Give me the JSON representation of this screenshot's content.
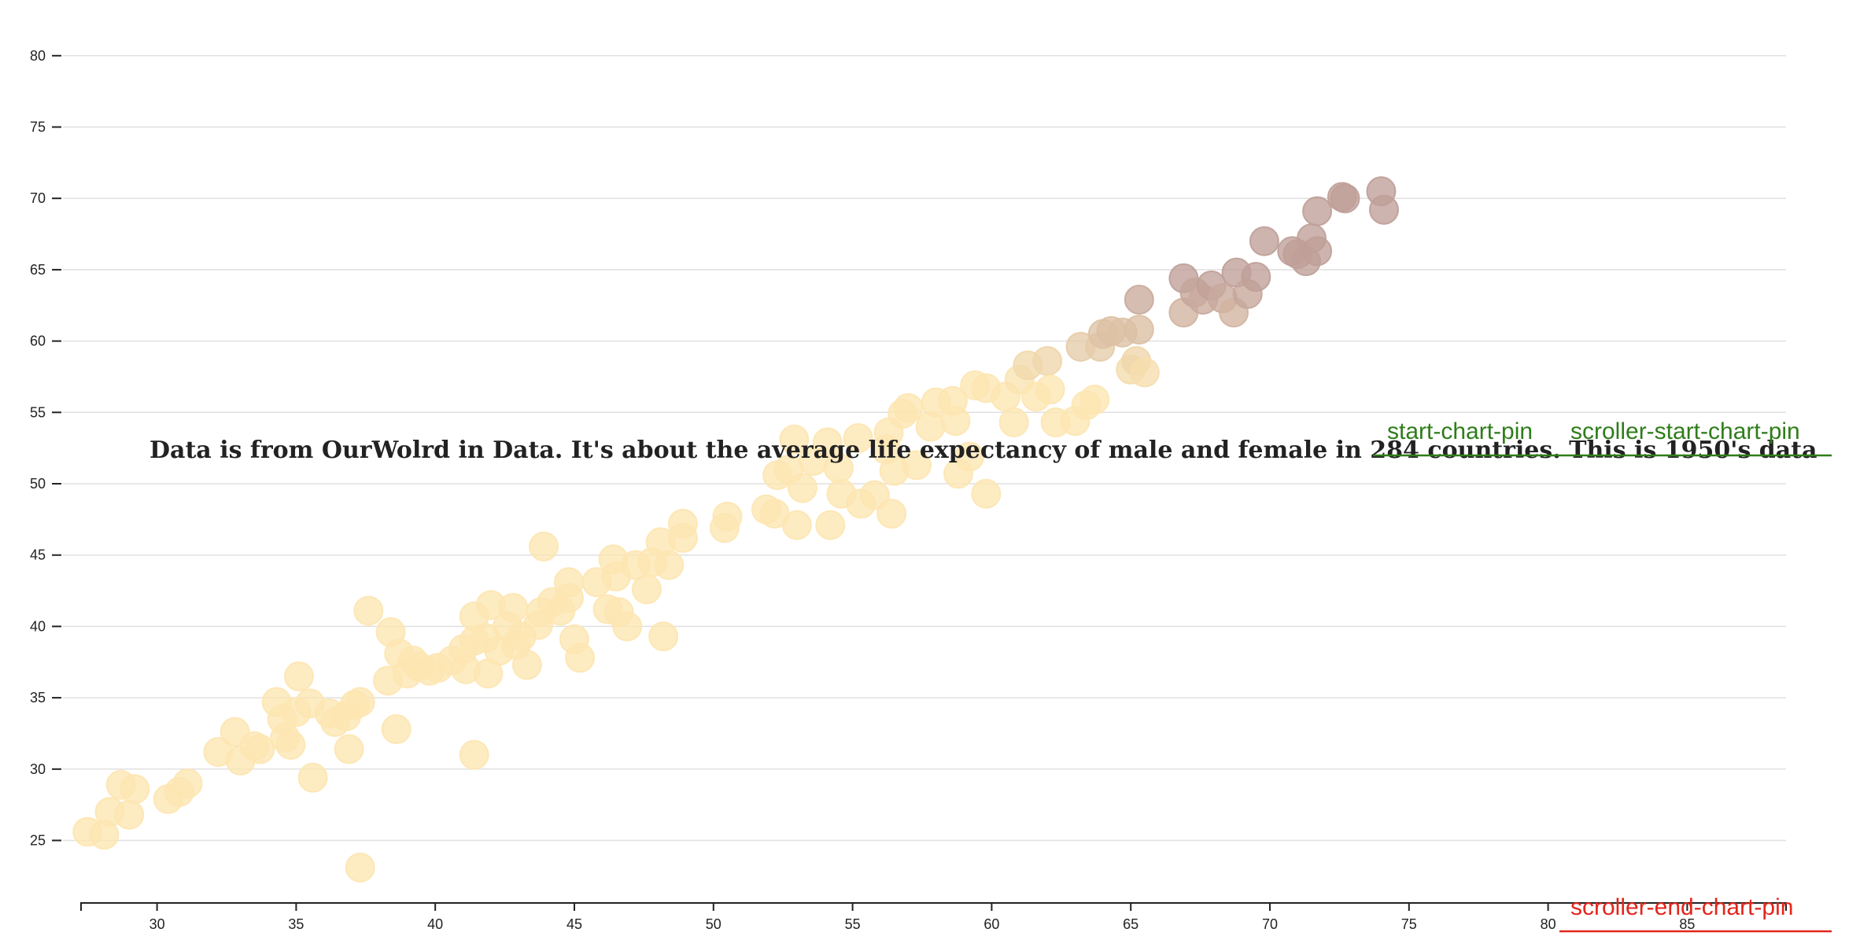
{
  "caption": "Data is from OurWolrd in Data. It's about the average life expectancy of male and female in 284 countries. This is 1950's data",
  "pins": {
    "start_chart_pin": "start-chart-pin",
    "scroller_start_chart_pin": "scroller-start-chart-pin",
    "scroller_end_chart_pin": "scroller-end-chart-pin",
    "start_color": "#2e7d1a",
    "end_color": "#e3261c"
  },
  "chart_data": {
    "type": "scatter",
    "title": "",
    "xlabel": "",
    "ylabel": "",
    "xlim": [
      27,
      89
    ],
    "ylim": [
      21,
      82
    ],
    "x_ticks": [
      30,
      35,
      40,
      45,
      50,
      55,
      60,
      65,
      70,
      75,
      80,
      85
    ],
    "y_ticks": [
      25,
      30,
      35,
      40,
      45,
      50,
      55,
      60,
      65,
      70,
      75,
      80
    ],
    "grid": true,
    "color_low": "#fde6b1",
    "color_high": "#bf9f98",
    "points": [
      [
        27.5,
        25.6
      ],
      [
        28.1,
        25.4
      ],
      [
        28.3,
        27.0
      ],
      [
        28.7,
        28.9
      ],
      [
        29.0,
        26.8
      ],
      [
        29.2,
        28.6
      ],
      [
        30.4,
        27.9
      ],
      [
        30.8,
        28.4
      ],
      [
        31.1,
        29.0
      ],
      [
        32.2,
        31.2
      ],
      [
        32.8,
        32.6
      ],
      [
        33.0,
        30.6
      ],
      [
        33.5,
        31.6
      ],
      [
        33.7,
        31.4
      ],
      [
        34.3,
        34.7
      ],
      [
        34.5,
        33.5
      ],
      [
        34.6,
        32.2
      ],
      [
        34.8,
        31.7
      ],
      [
        35.0,
        34.0
      ],
      [
        35.1,
        36.5
      ],
      [
        35.5,
        34.6
      ],
      [
        35.6,
        29.4
      ],
      [
        36.2,
        33.9
      ],
      [
        36.4,
        33.3
      ],
      [
        36.8,
        33.7
      ],
      [
        36.9,
        31.4
      ],
      [
        37.1,
        34.5
      ],
      [
        37.3,
        34.7
      ],
      [
        37.3,
        23.1
      ],
      [
        37.6,
        41.1
      ],
      [
        38.3,
        36.2
      ],
      [
        38.4,
        39.6
      ],
      [
        38.6,
        32.8
      ],
      [
        38.7,
        38.1
      ],
      [
        39.0,
        36.7
      ],
      [
        39.2,
        37.6
      ],
      [
        39.4,
        37.2
      ],
      [
        39.8,
        36.9
      ],
      [
        40.1,
        37.1
      ],
      [
        40.6,
        37.6
      ],
      [
        41.0,
        38.4
      ],
      [
        41.1,
        37.0
      ],
      [
        41.4,
        39.0
      ],
      [
        41.4,
        40.7
      ],
      [
        41.4,
        31.0
      ],
      [
        41.8,
        39.2
      ],
      [
        41.9,
        36.7
      ],
      [
        42.0,
        41.5
      ],
      [
        42.3,
        38.3
      ],
      [
        42.6,
        40.0
      ],
      [
        42.8,
        41.3
      ],
      [
        42.9,
        38.7
      ],
      [
        43.1,
        39.3
      ],
      [
        43.3,
        37.3
      ],
      [
        43.7,
        40.1
      ],
      [
        43.8,
        41.0
      ],
      [
        43.9,
        45.6
      ],
      [
        44.2,
        41.7
      ],
      [
        44.5,
        41.1
      ],
      [
        44.8,
        42.0
      ],
      [
        44.8,
        43.1
      ],
      [
        45.0,
        39.1
      ],
      [
        45.2,
        37.8
      ],
      [
        45.8,
        43.1
      ],
      [
        46.2,
        41.2
      ],
      [
        46.4,
        44.7
      ],
      [
        46.5,
        43.5
      ],
      [
        46.6,
        41.0
      ],
      [
        46.9,
        40.0
      ],
      [
        47.2,
        44.3
      ],
      [
        47.6,
        42.6
      ],
      [
        47.8,
        44.5
      ],
      [
        48.1,
        45.9
      ],
      [
        48.2,
        39.3
      ],
      [
        48.4,
        44.3
      ],
      [
        48.9,
        46.2
      ],
      [
        48.9,
        47.2
      ],
      [
        50.4,
        46.9
      ],
      [
        50.5,
        47.7
      ],
      [
        51.9,
        48.2
      ],
      [
        52.2,
        47.9
      ],
      [
        52.3,
        50.6
      ],
      [
        52.7,
        51.0
      ],
      [
        52.9,
        53.1
      ],
      [
        53.0,
        47.1
      ],
      [
        53.2,
        49.7
      ],
      [
        53.6,
        51.6
      ],
      [
        54.1,
        52.9
      ],
      [
        54.2,
        47.1
      ],
      [
        54.5,
        51.1
      ],
      [
        54.6,
        49.3
      ],
      [
        55.2,
        53.2
      ],
      [
        55.3,
        48.6
      ],
      [
        55.8,
        49.2
      ],
      [
        56.2,
        52.4
      ],
      [
        56.3,
        53.6
      ],
      [
        56.4,
        47.9
      ],
      [
        56.5,
        50.9
      ],
      [
        56.8,
        54.9
      ],
      [
        57.0,
        55.3
      ],
      [
        57.3,
        51.3
      ],
      [
        57.8,
        54.0
      ],
      [
        58.0,
        55.7
      ],
      [
        58.6,
        55.8
      ],
      [
        58.7,
        54.4
      ],
      [
        58.8,
        50.7
      ],
      [
        59.2,
        51.9
      ],
      [
        59.4,
        56.9
      ],
      [
        59.8,
        56.7
      ],
      [
        59.8,
        49.3
      ],
      [
        60.5,
        56.1
      ],
      [
        60.8,
        54.3
      ],
      [
        61.0,
        57.3
      ],
      [
        61.3,
        58.3
      ],
      [
        61.6,
        56.1
      ],
      [
        62.0,
        58.6
      ],
      [
        62.1,
        56.6
      ],
      [
        62.3,
        54.3
      ],
      [
        63.0,
        54.4
      ],
      [
        63.2,
        59.6
      ],
      [
        63.4,
        55.5
      ],
      [
        63.7,
        55.9
      ],
      [
        63.9,
        59.6
      ],
      [
        64.0,
        60.5
      ],
      [
        64.3,
        60.7
      ],
      [
        64.7,
        60.6
      ],
      [
        65.0,
        58.0
      ],
      [
        65.2,
        58.6
      ],
      [
        65.3,
        62.9
      ],
      [
        65.3,
        60.8
      ],
      [
        65.5,
        57.8
      ],
      [
        66.9,
        64.4
      ],
      [
        66.9,
        62.0
      ],
      [
        67.3,
        63.4
      ],
      [
        67.6,
        62.9
      ],
      [
        67.9,
        63.9
      ],
      [
        68.3,
        63.0
      ],
      [
        68.7,
        62.0
      ],
      [
        68.8,
        64.8
      ],
      [
        69.2,
        63.3
      ],
      [
        69.5,
        64.5
      ],
      [
        69.8,
        67.0
      ],
      [
        70.8,
        66.3
      ],
      [
        71.0,
        66.1
      ],
      [
        71.3,
        65.6
      ],
      [
        71.5,
        67.2
      ],
      [
        71.7,
        66.3
      ],
      [
        71.7,
        69.1
      ],
      [
        72.6,
        70.1
      ],
      [
        72.7,
        70.0
      ],
      [
        74.0,
        70.5
      ],
      [
        74.1,
        69.2
      ]
    ]
  }
}
